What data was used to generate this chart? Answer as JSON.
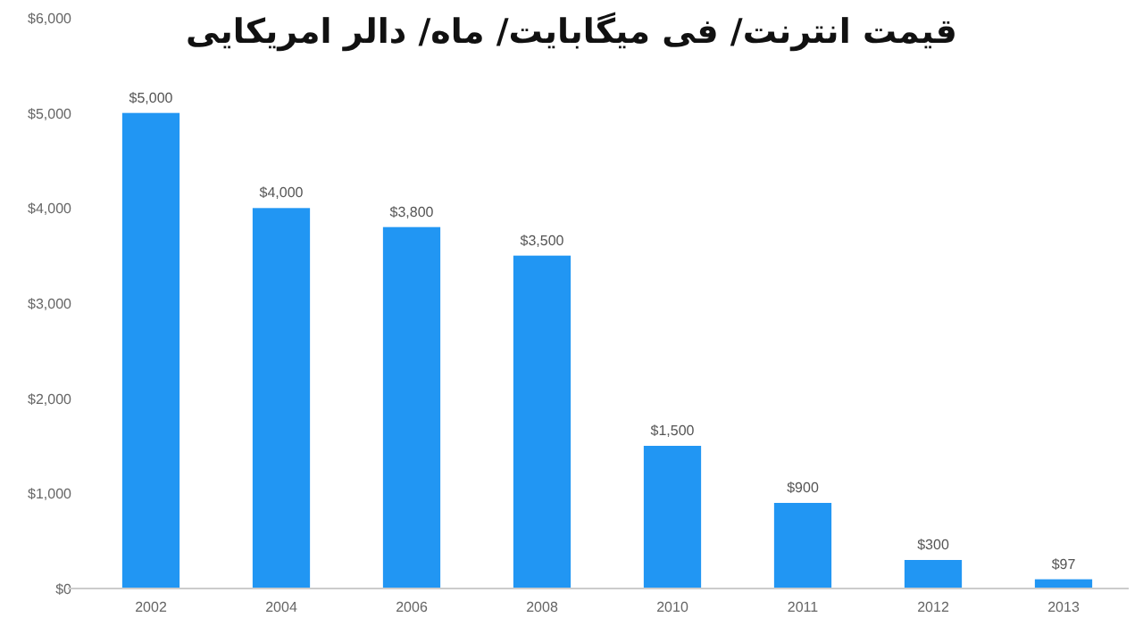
{
  "chart_data": {
    "type": "bar",
    "title": "قیمت انترنت/ فی میگابایت/ ماه/ دالر امریکایی",
    "categories": [
      "2002",
      "2004",
      "2006",
      "2008",
      "2010",
      "2011",
      "2012",
      "2013"
    ],
    "values": [
      5000,
      4000,
      3800,
      3500,
      1500,
      900,
      300,
      97
    ],
    "value_labels": [
      "$5,000",
      "$4,000",
      "$3,800",
      "$3,500",
      "$1,500",
      "$900",
      "$300",
      "$97"
    ],
    "color": "#2196f3",
    "ylim": [
      0,
      6000
    ],
    "yticks": [
      {
        "value": 0,
        "label": "$0"
      },
      {
        "value": 1000,
        "label": "$1,000"
      },
      {
        "value": 2000,
        "label": "$2,000"
      },
      {
        "value": 3000,
        "label": "$3,000"
      },
      {
        "value": 4000,
        "label": "$4,000"
      },
      {
        "value": 5000,
        "label": "$5,000"
      },
      {
        "value": 6000,
        "label": "$6,000"
      }
    ]
  }
}
